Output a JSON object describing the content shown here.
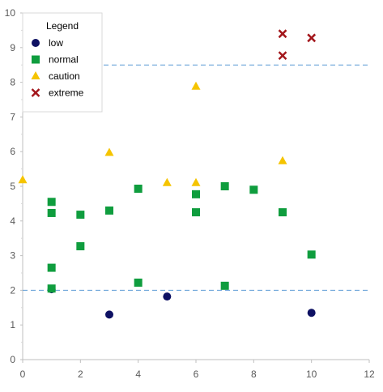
{
  "chart_data": {
    "type": "scatter",
    "xlim": [
      0,
      12
    ],
    "ylim": [
      0,
      10
    ],
    "x_ticks": [
      "0",
      "2",
      "4",
      "6",
      "8",
      "10",
      "12"
    ],
    "y_ticks": [
      "0",
      "1",
      "2",
      "3",
      "4",
      "5",
      "6",
      "7",
      "8",
      "9",
      "10"
    ],
    "grid": false,
    "legend": {
      "title": "Legend",
      "placement": "top-left",
      "entries": [
        "low",
        "normal",
        "caution",
        "extreme"
      ]
    },
    "reference_lines": [
      {
        "y": 2.0,
        "style": "dashed",
        "color": "#5b9bd5"
      },
      {
        "y": 8.5,
        "style": "dashed",
        "color": "#5b9bd5"
      }
    ],
    "series": [
      {
        "name": "low",
        "marker": "circle",
        "color": "#0e1163",
        "points": [
          [
            1,
            2.03
          ],
          [
            3,
            1.3
          ],
          [
            5,
            1.82
          ],
          [
            10,
            1.35
          ]
        ]
      },
      {
        "name": "normal",
        "marker": "square",
        "color": "#0f9d3e",
        "points": [
          [
            1,
            4.55
          ],
          [
            1,
            4.23
          ],
          [
            1,
            2.65
          ],
          [
            1,
            2.05
          ],
          [
            2,
            4.18
          ],
          [
            2,
            3.27
          ],
          [
            3,
            4.3
          ],
          [
            4,
            4.93
          ],
          [
            4,
            2.22
          ],
          [
            6,
            4.77
          ],
          [
            6,
            4.25
          ],
          [
            7,
            5.0
          ],
          [
            7,
            2.13
          ],
          [
            8,
            4.9
          ],
          [
            9,
            4.25
          ],
          [
            10,
            3.03
          ]
        ]
      },
      {
        "name": "caution",
        "marker": "triangle",
        "color": "#f5c400",
        "points": [
          [
            0,
            5.18
          ],
          [
            3,
            5.97
          ],
          [
            5,
            5.1
          ],
          [
            6,
            7.88
          ],
          [
            6,
            5.1
          ],
          [
            9,
            5.73
          ]
        ]
      },
      {
        "name": "extreme",
        "marker": "x",
        "color": "#a3171c",
        "points": [
          [
            9,
            9.4
          ],
          [
            9,
            8.77
          ],
          [
            10,
            9.28
          ]
        ]
      }
    ]
  }
}
